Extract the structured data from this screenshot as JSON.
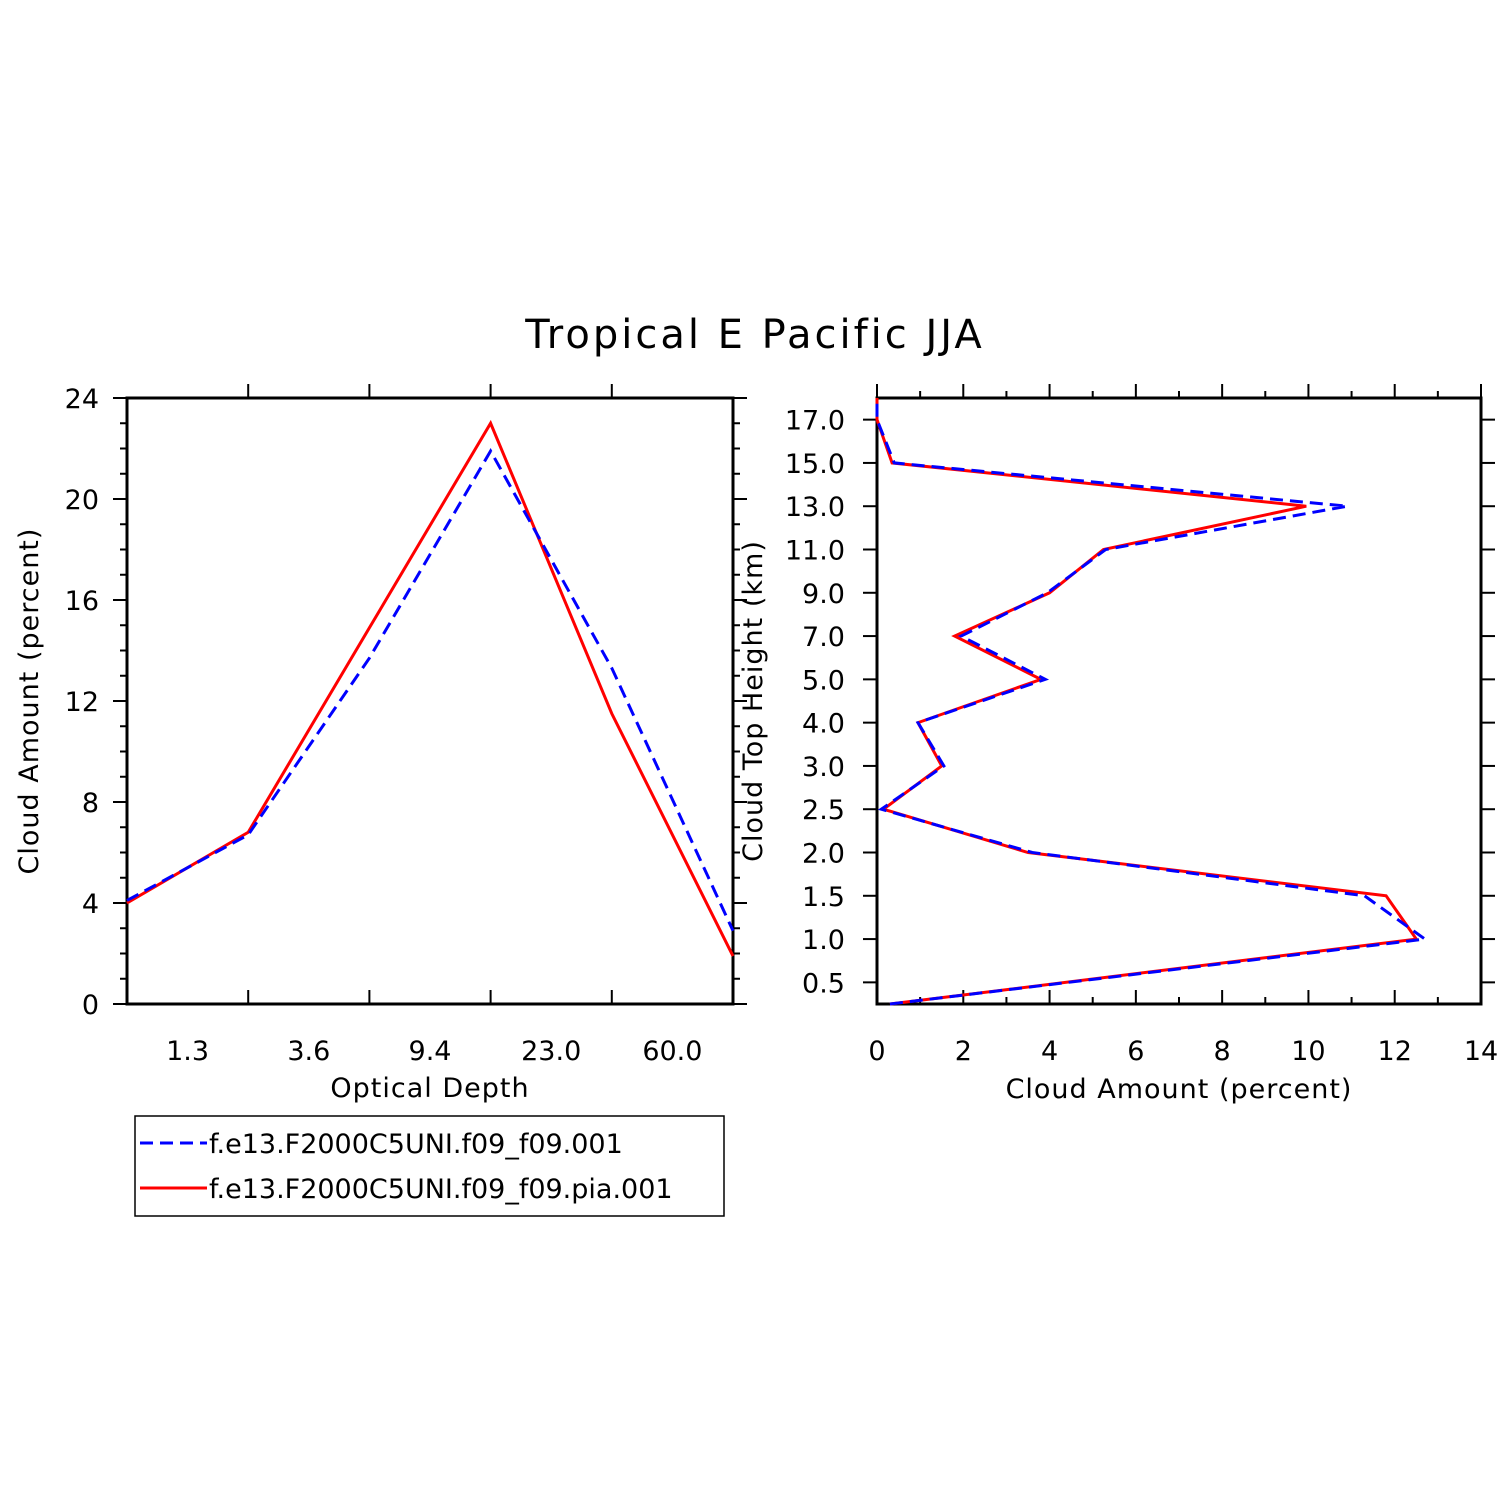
{
  "title": "Tropical E Pacific JJA",
  "colors": {
    "series1": "#0000ff",
    "series2": "#ff0000",
    "axis": "#000000"
  },
  "legend": {
    "entries": [
      {
        "label": "f.e13.F2000C5UNI.f09_f09.001",
        "color": "#0000ff",
        "style": "dashed"
      },
      {
        "label": "f.e13.F2000C5UNI.f09_f09.pia.001",
        "color": "#ff0000",
        "style": "solid"
      }
    ]
  },
  "chart_data": [
    {
      "type": "line",
      "xlabel": "Optical Depth",
      "ylabel": "Cloud Amount (percent)",
      "x_tick_labels": [
        "1.3",
        "3.6",
        "9.4",
        "23.0",
        "60.0"
      ],
      "x_categories_bins": 5,
      "ylim": [
        0,
        24
      ],
      "y_ticks": [
        0,
        4,
        8,
        12,
        16,
        20,
        24
      ],
      "x_scale": "optical-depth bins",
      "series": [
        {
          "name": "f.e13.F2000C5UNI.f09_f09.001",
          "x": [
            0,
            1,
            2,
            3,
            4,
            5
          ],
          "y": [
            4.1,
            6.7,
            13.7,
            21.9,
            13.3,
            2.9
          ]
        },
        {
          "name": "f.e13.F2000C5UNI.f09_f09.pia.001",
          "x": [
            0,
            1,
            2,
            3,
            4,
            5
          ],
          "y": [
            4.0,
            6.8,
            14.9,
            23.0,
            11.5,
            1.9
          ]
        }
      ]
    },
    {
      "type": "line",
      "orientation": "vertical-profile",
      "xlabel": "Cloud Amount (percent)",
      "ylabel": "Cloud Top Height (km)",
      "xlim": [
        0,
        14
      ],
      "x_ticks": [
        0,
        2,
        4,
        6,
        8,
        10,
        12,
        14
      ],
      "y_tick_labels": [
        "0.5",
        "1.0",
        "1.5",
        "2.0",
        "2.5",
        "3.0",
        "4.0",
        "5.0",
        "7.0",
        "9.0",
        "11.0",
        "13.0",
        "15.0",
        "17.0"
      ],
      "y_levels": 14,
      "series": [
        {
          "name": "f.e13.F2000C5UNI.f09_f09.001",
          "level": [
            0,
            1.5,
            2.5,
            3.5,
            4.5,
            5.5,
            6.5,
            7.5,
            8.5,
            9.5,
            10.5,
            11.5,
            12.5,
            13.5,
            14
          ],
          "value": [
            0.3,
            12.7,
            11.3,
            3.6,
            0.1,
            1.55,
            0.95,
            3.9,
            1.95,
            3.95,
            5.3,
            10.9,
            0.4,
            0.0,
            0.0
          ]
        },
        {
          "name": "f.e13.F2000C5UNI.f09_f09.pia.001",
          "level": [
            0,
            1.5,
            2.5,
            3.5,
            4.5,
            5.5,
            6.5,
            7.5,
            8.5,
            9.5,
            10.5,
            11.5,
            12.5,
            13.5,
            14
          ],
          "value": [
            0.3,
            12.5,
            11.8,
            3.5,
            0.15,
            1.5,
            0.95,
            3.8,
            1.8,
            4.0,
            5.25,
            9.95,
            0.35,
            0.0,
            0.0
          ]
        }
      ]
    }
  ]
}
